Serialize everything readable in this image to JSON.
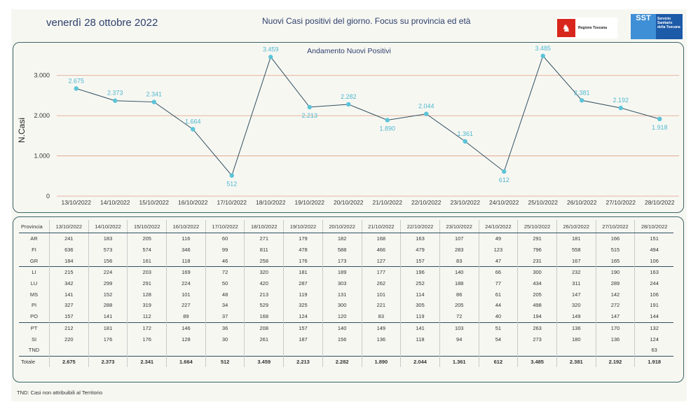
{
  "header": {
    "date": "venerdì 28 ottobre 2022",
    "subtitle": "Nuovi Casi positivi del giorno. Focus su provincia ed età",
    "logo_regione": "Regione Toscana",
    "logo_sst_short": "SST",
    "logo_sst_long": "Servizio Sanitario della Toscana"
  },
  "chart_data": {
    "type": "line",
    "title": "Andamento Nuovi Positivi",
    "ylabel": "N.Casi",
    "xlabel": "",
    "ylim": [
      0,
      3500
    ],
    "yticks": [
      0,
      1000,
      2000,
      3000
    ],
    "ytick_labels": [
      "0",
      "1.000",
      "2.000",
      "3.000"
    ],
    "categories": [
      "13/10/2022",
      "14/10/2022",
      "15/10/2022",
      "16/10/2022",
      "17/10/2022",
      "18/10/2022",
      "19/10/2022",
      "20/10/2022",
      "21/10/2022",
      "22/10/2022",
      "23/10/2022",
      "24/10/2022",
      "25/10/2022",
      "26/10/2022",
      "27/10/2022",
      "28/10/2022"
    ],
    "values": [
      2675,
      2373,
      2341,
      1664,
      512,
      3459,
      2213,
      2282,
      1890,
      2044,
      1361,
      612,
      3485,
      2381,
      2192,
      1918
    ],
    "data_labels": [
      "2.675",
      "2.373",
      "2.341",
      "1.664",
      "512",
      "3.459",
      "2.213",
      "2.282",
      "1.890",
      "2.044",
      "1.361",
      "612",
      "3.485",
      "2.381",
      "2.192",
      "1.918"
    ],
    "grid": true,
    "colors": {
      "line": "#2f4f5f",
      "marker": "#5bc4d8",
      "label": "#4fb8cf",
      "grid": "#e0a080"
    }
  },
  "table": {
    "header_label": "Provincia",
    "dates": [
      "13/10/2022",
      "14/10/2022",
      "15/10/2022",
      "16/10/2022",
      "17/10/2022",
      "18/10/2022",
      "19/10/2022",
      "20/10/2022",
      "21/10/2022",
      "22/10/2022",
      "23/10/2022",
      "24/10/2022",
      "25/10/2022",
      "26/10/2022",
      "27/10/2022",
      "28/10/2022"
    ],
    "rows": [
      {
        "prov": "AR",
        "values": [
          "241",
          "183",
          "205",
          "116",
          "60",
          "271",
          "179",
          "182",
          "168",
          "163",
          "107",
          "49",
          "291",
          "181",
          "166",
          "151"
        ]
      },
      {
        "prov": "FI",
        "values": [
          "636",
          "573",
          "574",
          "346",
          "99",
          "811",
          "478",
          "588",
          "466",
          "479",
          "283",
          "123",
          "796",
          "558",
          "515",
          "494"
        ]
      },
      {
        "prov": "GR",
        "values": [
          "184",
          "156",
          "161",
          "118",
          "46",
          "258",
          "176",
          "173",
          "127",
          "157",
          "83",
          "47",
          "231",
          "167",
          "165",
          "106"
        ]
      },
      {
        "prov": "LI",
        "values": [
          "215",
          "224",
          "203",
          "169",
          "72",
          "320",
          "181",
          "189",
          "177",
          "196",
          "140",
          "66",
          "300",
          "232",
          "190",
          "163"
        ]
      },
      {
        "prov": "LU",
        "values": [
          "342",
          "299",
          "291",
          "224",
          "50",
          "420",
          "287",
          "303",
          "262",
          "252",
          "188",
          "77",
          "434",
          "311",
          "289",
          "244"
        ]
      },
      {
        "prov": "MS",
        "values": [
          "141",
          "152",
          "128",
          "101",
          "48",
          "213",
          "119",
          "131",
          "101",
          "114",
          "86",
          "61",
          "205",
          "147",
          "142",
          "106"
        ]
      },
      {
        "prov": "PI",
        "values": [
          "327",
          "288",
          "319",
          "227",
          "34",
          "529",
          "325",
          "300",
          "221",
          "305",
          "205",
          "44",
          "498",
          "320",
          "272",
          "191"
        ]
      },
      {
        "prov": "PO",
        "values": [
          "157",
          "141",
          "112",
          "89",
          "37",
          "168",
          "124",
          "120",
          "83",
          "119",
          "72",
          "40",
          "194",
          "149",
          "147",
          "144"
        ]
      },
      {
        "prov": "PT",
        "values": [
          "212",
          "181",
          "172",
          "146",
          "36",
          "208",
          "157",
          "140",
          "149",
          "141",
          "103",
          "51",
          "263",
          "136",
          "170",
          "132"
        ]
      },
      {
        "prov": "SI",
        "values": [
          "220",
          "176",
          "176",
          "128",
          "30",
          "261",
          "187",
          "156",
          "136",
          "118",
          "94",
          "54",
          "273",
          "180",
          "136",
          "124"
        ]
      },
      {
        "prov": "TND",
        "values": [
          "",
          "",
          "",
          "",
          "",
          "",
          "",
          "",
          "",
          "",
          "",
          "",
          "",
          "",
          "",
          "63"
        ]
      }
    ],
    "total_label": "Totale",
    "totals": [
      "2.675",
      "2.373",
      "2.341",
      "1.664",
      "512",
      "3.459",
      "2.213",
      "2.282",
      "1.890",
      "2.044",
      "1.361",
      "612",
      "3.485",
      "2.381",
      "2.192",
      "1.918"
    ]
  },
  "footnote": "TND: Casi non attribuibili al Territorio"
}
